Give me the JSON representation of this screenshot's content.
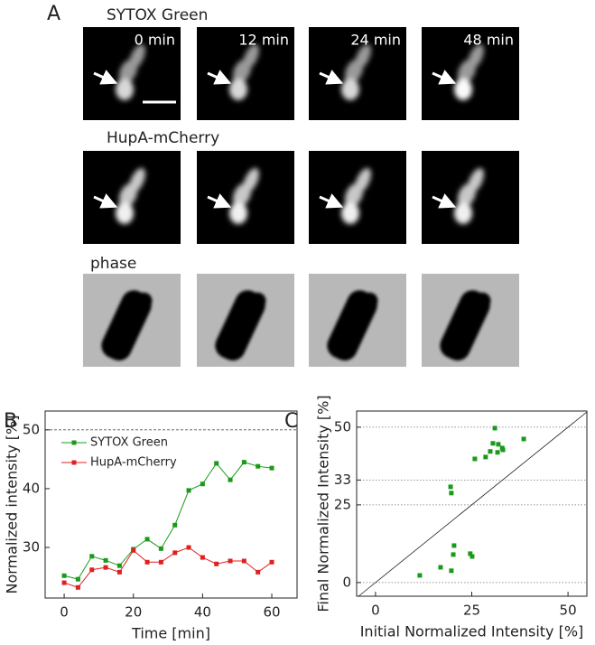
{
  "figure": {
    "panel_labels": [
      "A",
      "B",
      "C"
    ],
    "row_labels": [
      "SYTOX Green",
      "HupA-mCherry",
      "phase"
    ],
    "time_labels": [
      "0 min",
      "12 min",
      "24 min",
      "48 min"
    ]
  },
  "chart_data": [
    {
      "type": "line",
      "xlabel": "Time [min]",
      "ylabel": "Normalized intensity [%]",
      "x": [
        0,
        4,
        8,
        12,
        16,
        20,
        24,
        28,
        32,
        36,
        40,
        44,
        48,
        52,
        56,
        60
      ],
      "series": [
        {
          "name": "SYTOX Green",
          "color": "#1a9a1a",
          "values": [
            25.2,
            24.6,
            28.5,
            27.8,
            26.9,
            29.7,
            31.4,
            29.8,
            33.8,
            39.7,
            40.8,
            44.3,
            41.5,
            44.5,
            43.8,
            43.5
          ]
        },
        {
          "name": "HupA-mCherry",
          "color": "#e02020",
          "values": [
            24.0,
            23.2,
            26.2,
            26.6,
            25.8,
            29.5,
            27.5,
            27.5,
            29.1,
            30.0,
            28.3,
            27.2,
            27.7,
            27.7,
            25.8,
            27.5
          ]
        }
      ],
      "xlim": [
        -5.5,
        67.3
      ],
      "xticks": [
        0,
        20,
        40,
        60
      ],
      "ylim": [
        21.4,
        53.2
      ],
      "yticks": [
        30,
        40,
        50
      ],
      "reference_line": 50
    },
    {
      "type": "scatter",
      "xlabel": "Initial Normalized Intensity [%]",
      "ylabel": "Final Normalized Intensity [%]",
      "color": "#1a9a1a",
      "x": [
        11.5,
        16.9,
        19.7,
        20.4,
        20.2,
        24.6,
        25.1,
        19.5,
        19.7,
        25.8,
        28.6,
        31.7,
        30.5,
        31.9,
        32.9,
        31.0,
        33.1,
        29.8,
        38.5
      ],
      "values": [
        2.3,
        4.9,
        3.8,
        11.9,
        9.0,
        9.3,
        8.4,
        30.8,
        28.8,
        39.8,
        40.4,
        41.9,
        44.8,
        44.5,
        43.3,
        49.7,
        42.7,
        42.2,
        46.2
      ],
      "xlim": [
        -4.9,
        54.9
      ],
      "xticks": [
        0,
        25,
        50
      ],
      "ylim": [
        -4.4,
        55.2
      ],
      "yticks": [
        0,
        25,
        33,
        50
      ],
      "grid": true,
      "diagonal": true
    }
  ]
}
